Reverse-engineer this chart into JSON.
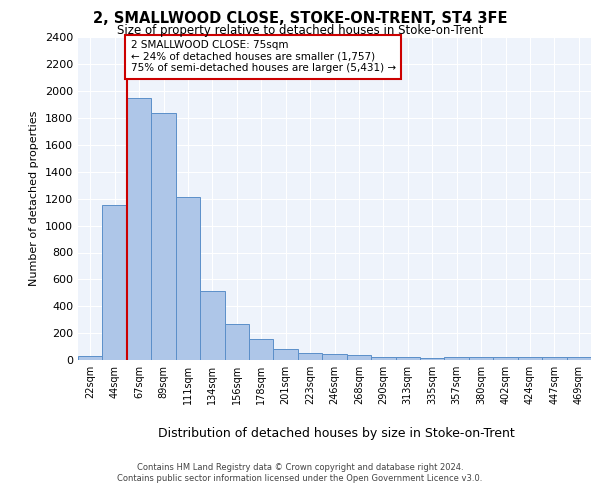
{
  "title": "2, SMALLWOOD CLOSE, STOKE-ON-TRENT, ST4 3FE",
  "subtitle": "Size of property relative to detached houses in Stoke-on-Trent",
  "xlabel": "Distribution of detached houses by size in Stoke-on-Trent",
  "ylabel": "Number of detached properties",
  "categories": [
    "22sqm",
    "44sqm",
    "67sqm",
    "89sqm",
    "111sqm",
    "134sqm",
    "156sqm",
    "178sqm",
    "201sqm",
    "223sqm",
    "246sqm",
    "268sqm",
    "290sqm",
    "313sqm",
    "335sqm",
    "357sqm",
    "380sqm",
    "402sqm",
    "424sqm",
    "447sqm",
    "469sqm"
  ],
  "values": [
    30,
    1150,
    1950,
    1840,
    1210,
    510,
    265,
    155,
    80,
    50,
    45,
    40,
    20,
    22,
    15,
    20,
    20,
    20,
    20,
    20,
    20
  ],
  "bar_color": "#aec6e8",
  "bar_edge_color": "#5b8fc9",
  "ylim": [
    0,
    2400
  ],
  "yticks": [
    0,
    200,
    400,
    600,
    800,
    1000,
    1200,
    1400,
    1600,
    1800,
    2000,
    2200,
    2400
  ],
  "property_bin_index": 2,
  "red_line_color": "#cc0000",
  "annotation_text": "2 SMALLWOOD CLOSE: 75sqm\n← 24% of detached houses are smaller (1,757)\n75% of semi-detached houses are larger (5,431) →",
  "annotation_box_color": "#cc0000",
  "footer_line1": "Contains HM Land Registry data © Crown copyright and database right 2024.",
  "footer_line2": "Contains public sector information licensed under the Open Government Licence v3.0.",
  "bg_color": "#eef3fb",
  "grid_color": "#ffffff",
  "fig_bg_color": "#ffffff"
}
